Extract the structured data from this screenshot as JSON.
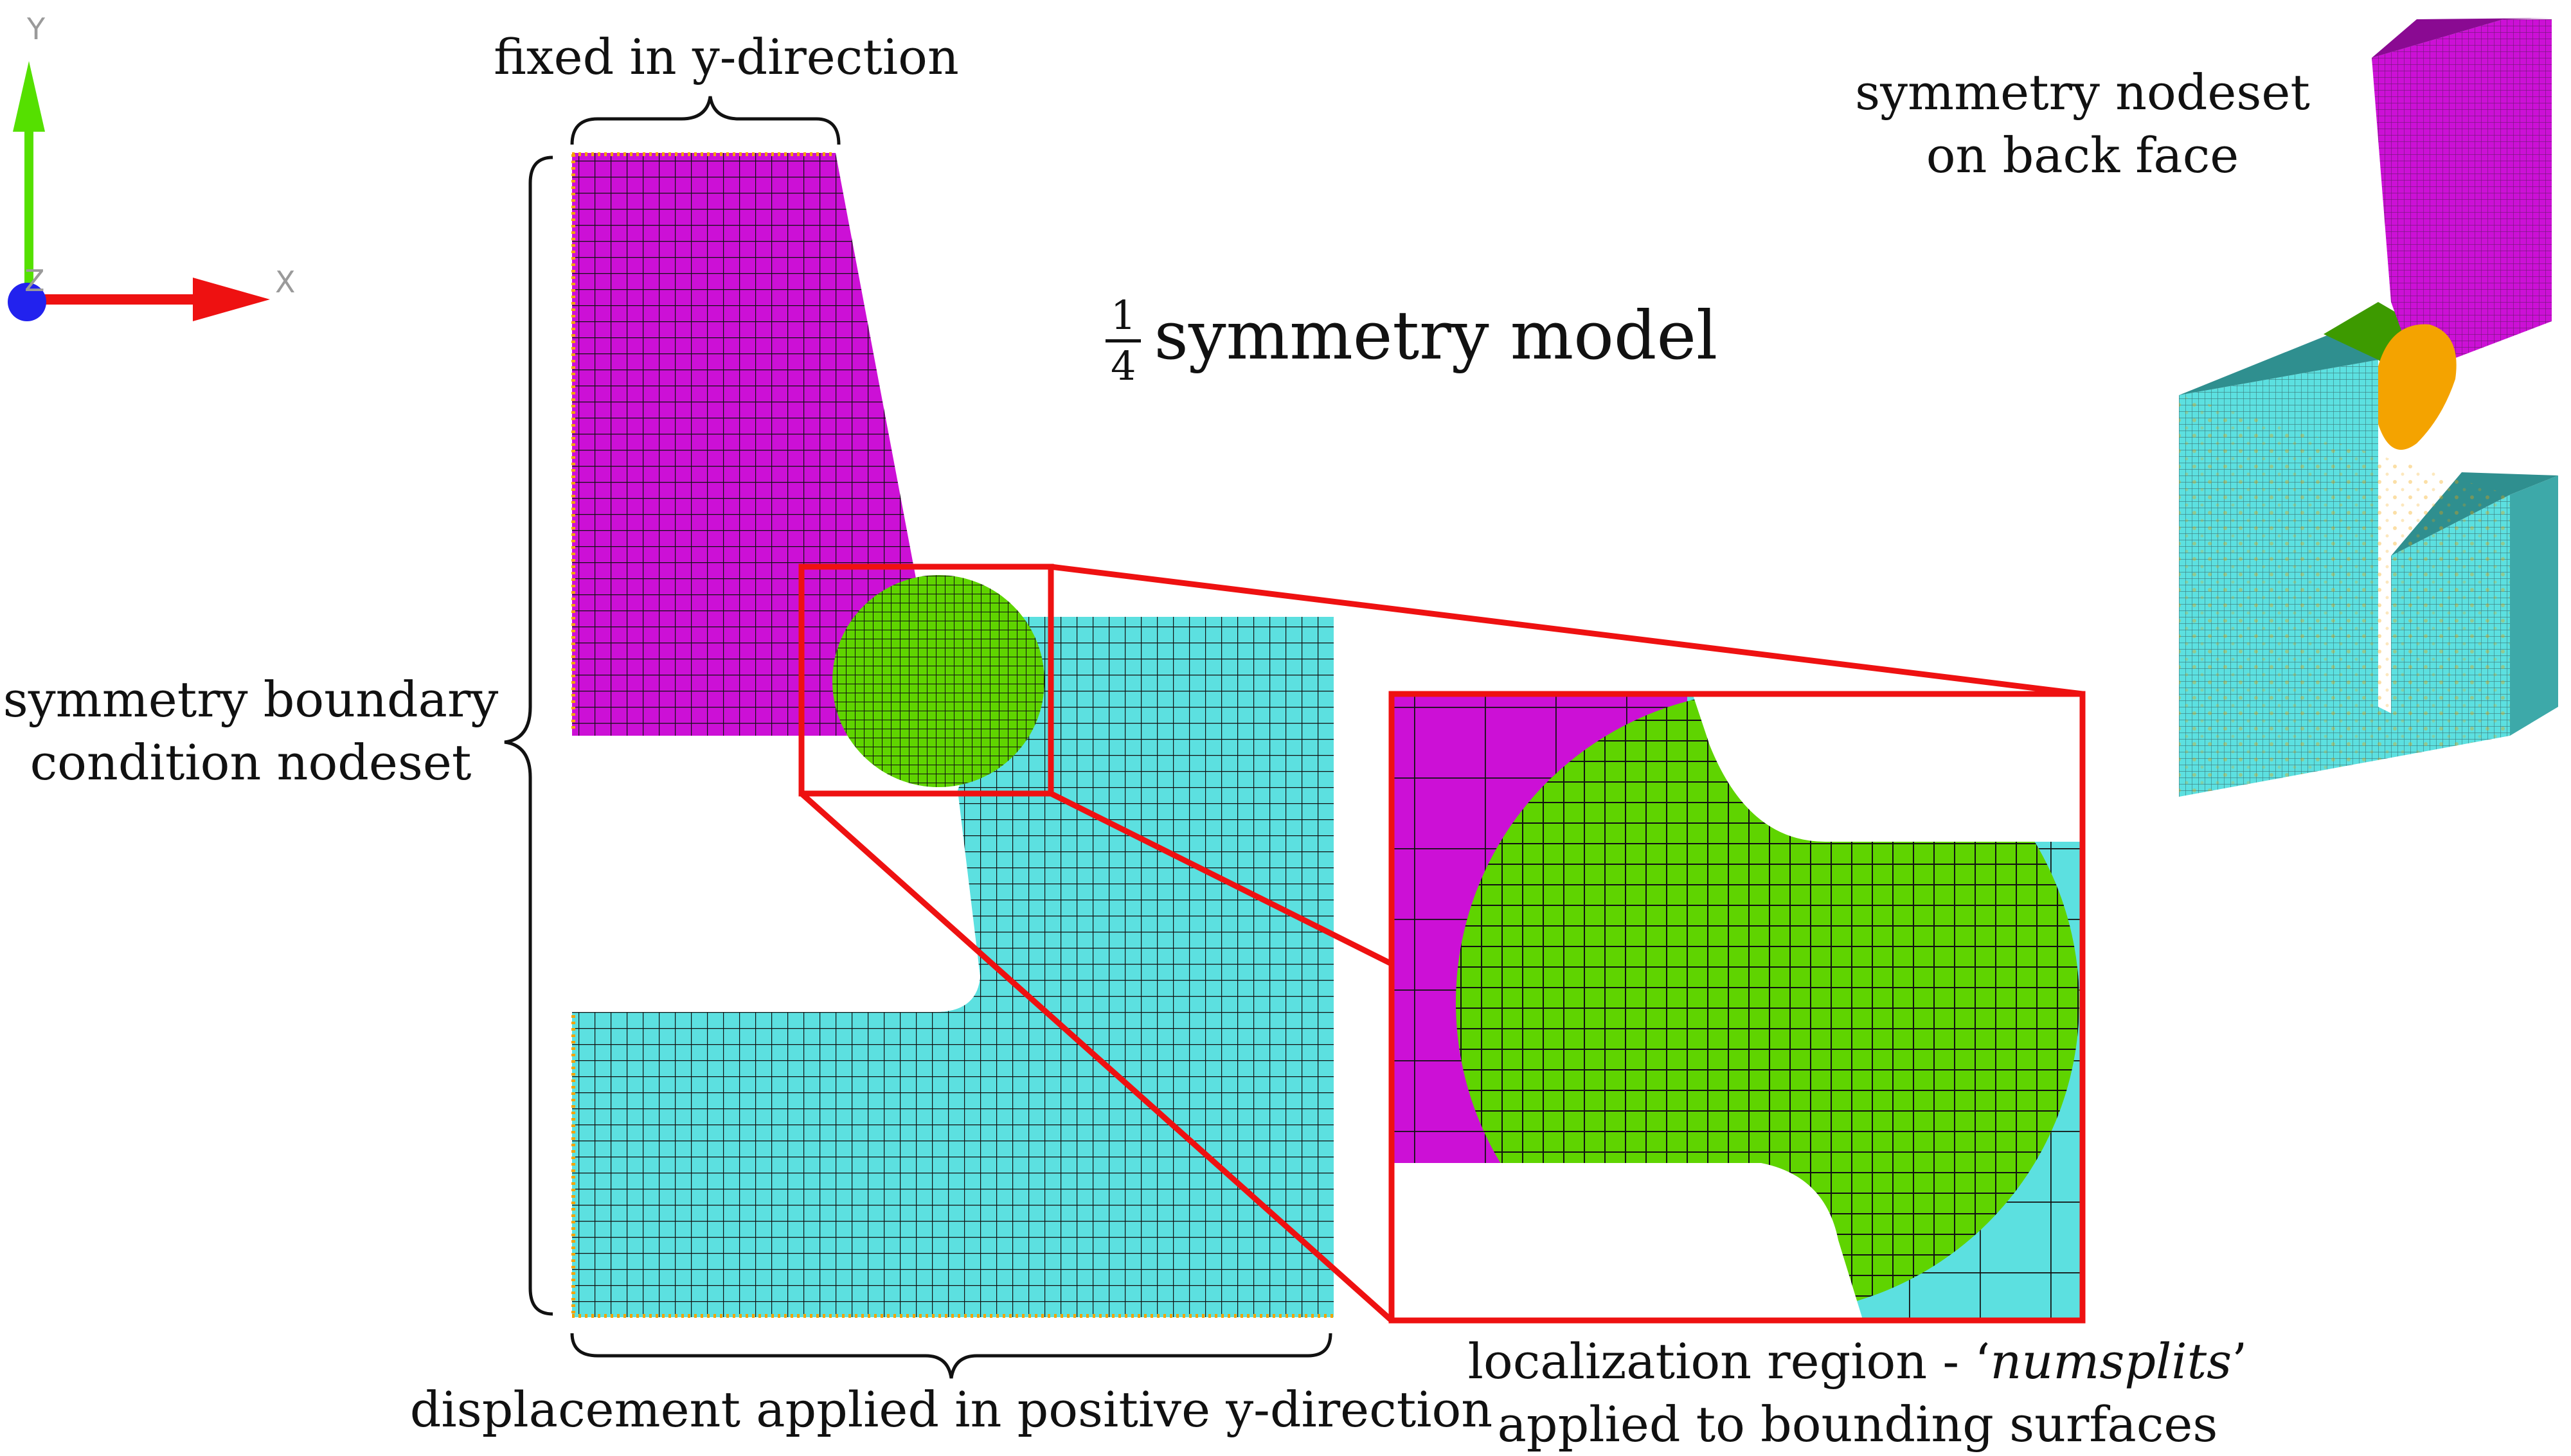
{
  "axes": {
    "y_label": "Y",
    "z_label": "Z",
    "x_label": "X"
  },
  "title": {
    "fraction_num": "1",
    "fraction_den": "4",
    "text": "symmetry model"
  },
  "labels": {
    "fixed": "fixed in y-direction",
    "symmetry_bc_line1": "symmetry boundary",
    "symmetry_bc_line2": "condition nodeset",
    "displacement": "displacement applied in positive y-direction",
    "symmetry_back_line1": "symmetry nodeset",
    "symmetry_back_line2": "on back face",
    "localization_prefix": "localization region - ‘",
    "localization_italic": "numsplits",
    "localization_suffix": "’",
    "localization_line2": "applied to bounding surfaces"
  },
  "colors": {
    "magenta": "#cc10d6",
    "cyan": "#5ce0e0",
    "green": "#5fd400",
    "orange": "#f4a300",
    "highlight": "#ee1111",
    "mesh": "#111111",
    "axis_y": "#55e000",
    "axis_x": "#ee1111",
    "axis_z": "#2222ee"
  }
}
